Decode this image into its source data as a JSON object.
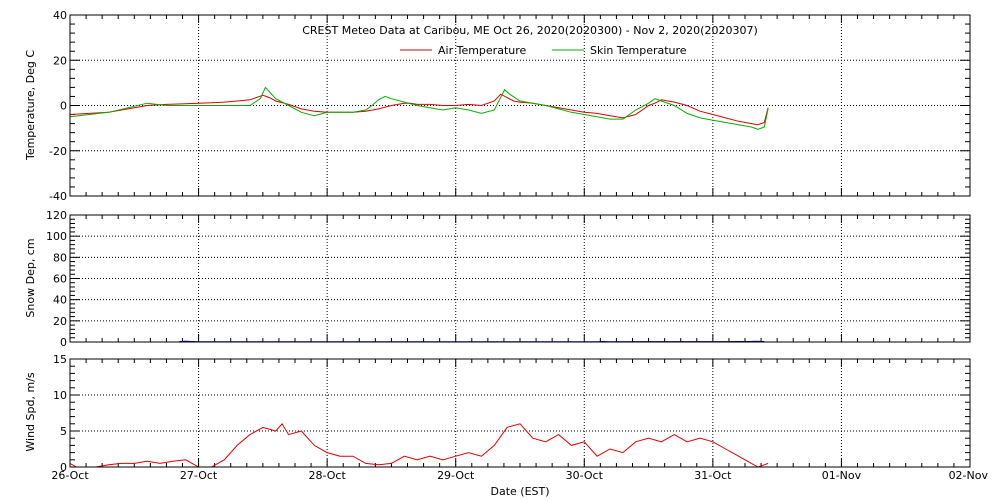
{
  "chart_data": {
    "type": "line",
    "title": "CREST Meteo Data at Caribou, ME   Oct 26, 2020(2020300) - Nov  2, 2020(2020307)",
    "xlabel": "Date (EST)",
    "x_ticks": [
      "26-Oct",
      "27-Oct",
      "28-Oct",
      "29-Oct",
      "30-Oct",
      "31-Oct",
      "01-Nov",
      "02-Nov"
    ],
    "x_unit": "days since 26-Oct 00:00 EST",
    "grid": true,
    "colors": {
      "air": "#e00000",
      "skin": "#00b000",
      "snow": "#0000cc",
      "wind": "#e00000",
      "axis": "#000000"
    },
    "panels": [
      {
        "id": "temperature",
        "ylabel": "Temperature, Deg C",
        "ylim": [
          -40,
          40
        ],
        "yticks": [
          -40,
          -20,
          0,
          20,
          40
        ],
        "legend_position": "top-center",
        "series": [
          {
            "name": "Air Temperature",
            "color": "#e00000",
            "x": [
              0,
              0.15,
              0.3,
              0.45,
              0.6,
              0.75,
              0.9,
              1.0,
              1.1,
              1.2,
              1.3,
              1.4,
              1.5,
              1.55,
              1.6,
              1.7,
              1.8,
              1.9,
              2.0,
              2.1,
              2.2,
              2.3,
              2.4,
              2.5,
              2.6,
              2.65,
              2.7,
              2.8,
              2.9,
              3.0,
              3.1,
              3.2,
              3.3,
              3.35,
              3.4,
              3.45,
              3.5,
              3.6,
              3.7,
              3.8,
              3.9,
              4.0,
              4.1,
              4.2,
              4.3,
              4.4,
              4.5,
              4.55,
              4.6,
              4.7,
              4.8,
              4.9,
              5.0,
              5.1,
              5.2,
              5.3,
              5.35,
              5.4,
              5.43
            ],
            "values": [
              -4.0,
              -3.5,
              -3.0,
              -1.5,
              0.0,
              0.5,
              0.8,
              1.0,
              1.2,
              1.5,
              2.0,
              2.5,
              4.5,
              3.5,
              2.0,
              0.5,
              -1.5,
              -2.5,
              -3.0,
              -3.0,
              -3.0,
              -2.5,
              -1.5,
              0.0,
              1.0,
              1.0,
              0.5,
              0.5,
              0.0,
              0.0,
              0.5,
              0.0,
              2.0,
              5.0,
              3.5,
              2.0,
              1.5,
              1.0,
              0.0,
              -1.0,
              -2.0,
              -3.0,
              -3.5,
              -4.5,
              -5.5,
              -4.0,
              0.0,
              1.0,
              2.5,
              1.5,
              0.0,
              -2.5,
              -4.0,
              -5.5,
              -7.0,
              -8.0,
              -8.5,
              -7.5,
              -1.0
            ]
          },
          {
            "name": "Skin Temperature",
            "color": "#00b000",
            "x": [
              0,
              0.15,
              0.3,
              0.45,
              0.6,
              0.75,
              0.9,
              1.0,
              1.1,
              1.2,
              1.3,
              1.4,
              1.48,
              1.52,
              1.56,
              1.6,
              1.7,
              1.8,
              1.9,
              2.0,
              2.1,
              2.2,
              2.3,
              2.35,
              2.4,
              2.45,
              2.5,
              2.6,
              2.7,
              2.8,
              2.9,
              3.0,
              3.1,
              3.2,
              3.3,
              3.38,
              3.42,
              3.5,
              3.6,
              3.7,
              3.8,
              3.9,
              4.0,
              4.1,
              4.2,
              4.3,
              4.4,
              4.5,
              4.55,
              4.6,
              4.7,
              4.8,
              4.9,
              5.0,
              5.1,
              5.2,
              5.3,
              5.35,
              5.4,
              5.43
            ],
            "values": [
              -5.0,
              -4.0,
              -3.0,
              -1.0,
              1.0,
              0.0,
              0.0,
              0.0,
              0.0,
              0.0,
              0.0,
              0.0,
              3.0,
              8.0,
              5.5,
              3.0,
              0.0,
              -3.0,
              -4.5,
              -3.0,
              -3.0,
              -3.0,
              -2.0,
              0.0,
              2.5,
              4.0,
              3.0,
              1.5,
              0.0,
              -1.0,
              -2.0,
              -1.0,
              -2.0,
              -3.5,
              -2.0,
              7.0,
              5.0,
              2.0,
              1.0,
              0.0,
              -1.5,
              -3.0,
              -4.0,
              -5.0,
              -6.0,
              -6.0,
              -2.0,
              1.0,
              3.0,
              2.0,
              0.0,
              -3.5,
              -5.5,
              -6.5,
              -7.5,
              -8.5,
              -9.5,
              -10.5,
              -9.5,
              -1.5
            ]
          }
        ]
      },
      {
        "id": "snow",
        "ylabel": "Snow Dep, cm",
        "ylim": [
          0,
          120
        ],
        "yticks": [
          0,
          20,
          40,
          60,
          80,
          100,
          120
        ],
        "series": [
          {
            "color": "#0000cc",
            "x": [
              0.85,
              0.9,
              0.95,
              1.0,
              4.1,
              4.15,
              4.2,
              5.1,
              5.2,
              5.3,
              5.35,
              5.4
            ],
            "values": [
              0.5,
              0.8,
              0.5,
              0.3,
              0.3,
              0.5,
              0.3,
              0.4,
              0.5,
              0.6,
              0.8,
              0.5
            ]
          }
        ]
      },
      {
        "id": "wind",
        "ylabel": "Wind Spd, m/s",
        "ylim": [
          0,
          15
        ],
        "yticks": [
          0,
          5,
          10,
          15
        ],
        "series": [
          {
            "color": "#e00000",
            "x": [
              0,
              0.05,
              0.1,
              0.2,
              0.3,
              0.4,
              0.5,
              0.6,
              0.7,
              0.8,
              0.9,
              0.95,
              1.0,
              1.1,
              1.2,
              1.3,
              1.4,
              1.5,
              1.6,
              1.65,
              1.7,
              1.8,
              1.9,
              2.0,
              2.1,
              2.2,
              2.3,
              2.4,
              2.5,
              2.6,
              2.7,
              2.8,
              2.9,
              3.0,
              3.1,
              3.2,
              3.3,
              3.4,
              3.5,
              3.55,
              3.6,
              3.7,
              3.8,
              3.9,
              4.0,
              4.1,
              4.2,
              4.3,
              4.4,
              4.5,
              4.6,
              4.7,
              4.8,
              4.9,
              5.0,
              5.1,
              5.2,
              5.3,
              5.35,
              5.4,
              5.43
            ],
            "values": [
              0.5,
              0.0,
              0.0,
              0.0,
              0.3,
              0.5,
              0.5,
              0.8,
              0.5,
              0.8,
              1.0,
              0.5,
              0.0,
              0.0,
              1.0,
              3.0,
              4.5,
              5.5,
              5.0,
              6.0,
              4.5,
              5.0,
              3.0,
              2.0,
              1.5,
              1.5,
              0.5,
              0.3,
              0.5,
              1.5,
              1.0,
              1.5,
              1.0,
              1.5,
              2.0,
              1.5,
              3.0,
              5.5,
              6.0,
              5.0,
              4.0,
              3.5,
              4.5,
              3.0,
              3.5,
              1.5,
              2.5,
              2.0,
              3.5,
              4.0,
              3.5,
              4.5,
              3.5,
              4.0,
              3.5,
              2.5,
              1.5,
              0.5,
              0.0,
              0.3,
              0.5
            ]
          }
        ]
      }
    ]
  }
}
